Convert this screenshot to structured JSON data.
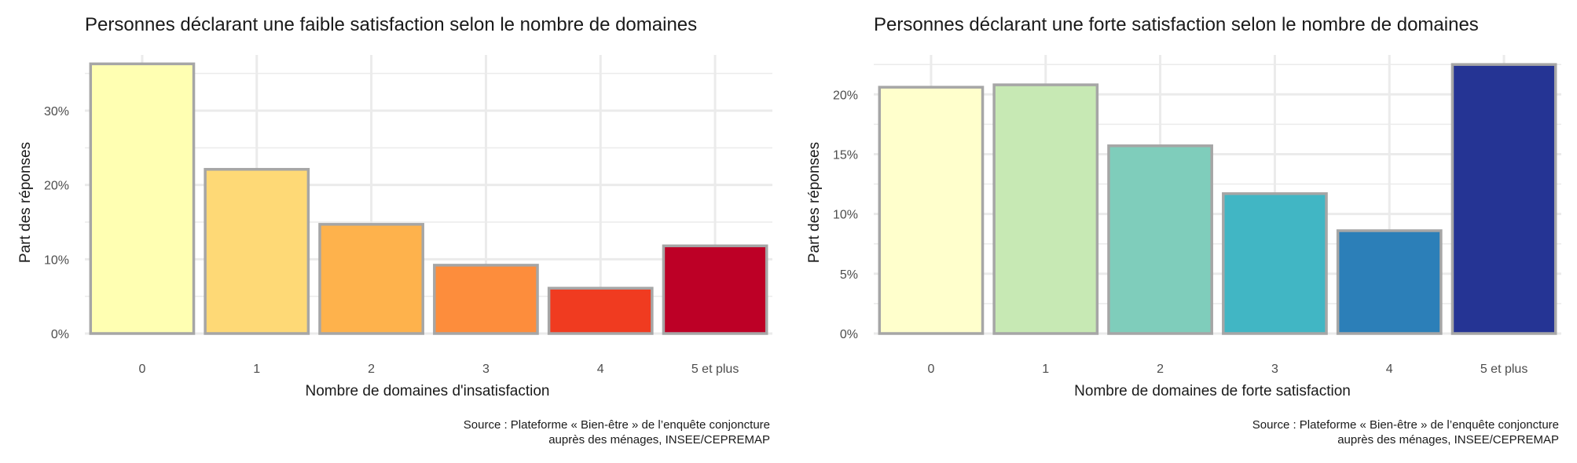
{
  "chart_data": [
    {
      "type": "bar",
      "title": "Personnes déclarant une faible satisfaction selon le nombre de domaines",
      "xlabel": "Nombre de domaines d'insatisfaction",
      "ylabel": "Part des réponses",
      "categories": [
        "0",
        "1",
        "2",
        "3",
        "4",
        "5 et plus"
      ],
      "values": [
        36.3,
        22.1,
        14.7,
        9.2,
        6.1,
        11.8
      ],
      "colors": [
        "#ffffb2",
        "#fed976",
        "#feb24c",
        "#fd8d3c",
        "#f03b20",
        "#bd0026"
      ],
      "yticks": [
        0,
        10,
        20,
        30
      ],
      "ytick_labels": [
        "0%",
        "10%",
        "20%",
        "30%"
      ],
      "ylim": [
        0,
        37.5
      ],
      "grid": true,
      "source_line1": "Source : Plateforme « Bien-être » de l’enquête conjoncture",
      "source_line2": "auprès des ménages, INSEE/CEPREMAP"
    },
    {
      "type": "bar",
      "title": "Personnes déclarant une forte satisfaction selon le nombre de domaines",
      "xlabel": "Nombre de domaines de forte satisfaction",
      "ylabel": "Part des réponses",
      "categories": [
        "0",
        "1",
        "2",
        "3",
        "4",
        "5 et plus"
      ],
      "values": [
        20.6,
        20.8,
        15.7,
        11.7,
        8.6,
        22.5
      ],
      "colors": [
        "#ffffcc",
        "#c7e9b4",
        "#7fcdbb",
        "#41b6c4",
        "#2c7fb8",
        "#253494"
      ],
      "yticks": [
        0,
        5,
        10,
        15,
        20
      ],
      "ytick_labels": [
        "0%",
        "5%",
        "10%",
        "15%",
        "20%"
      ],
      "ylim": [
        0,
        23.3
      ],
      "grid": true,
      "source_line1": "Source : Plateforme « Bien-être » de l’enquête conjoncture",
      "source_line2": "auprès des ménages, INSEE/CEPREMAP"
    }
  ]
}
